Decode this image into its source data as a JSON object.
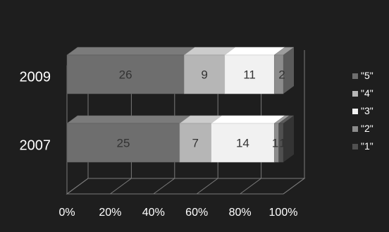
{
  "chart_data": {
    "type": "bar",
    "orientation": "horizontal",
    "stacked": "100%",
    "three_d": true,
    "categories": [
      "2009",
      "2007"
    ],
    "series": [
      {
        "name": "\"5\"",
        "values": [
          26,
          25
        ],
        "color": "#6e6e6e"
      },
      {
        "name": "\"4\"",
        "values": [
          9,
          7
        ],
        "color": "#b6b6b6"
      },
      {
        "name": "\"3\"",
        "values": [
          11,
          14
        ],
        "color": "#f1f1f1"
      },
      {
        "name": "\"2\"",
        "values": [
          2,
          1
        ],
        "color": "#8c8c8c"
      },
      {
        "name": "\"1\"",
        "values": [
          0,
          1
        ],
        "color": "#505050"
      }
    ],
    "data_labels": [
      [
        "26",
        "9",
        "11",
        "2",
        ""
      ],
      [
        "25",
        "7",
        "14",
        "1",
        "1"
      ]
    ],
    "x_ticks": [
      "0%",
      "20%",
      "40%",
      "60%",
      "80%",
      "100%"
    ],
    "xlim": [
      0,
      100
    ],
    "grid": true,
    "legend_position": "right",
    "background": "#1e1e1e",
    "text_color": "#ffffff",
    "title": "",
    "xlabel": "",
    "ylabel": ""
  }
}
